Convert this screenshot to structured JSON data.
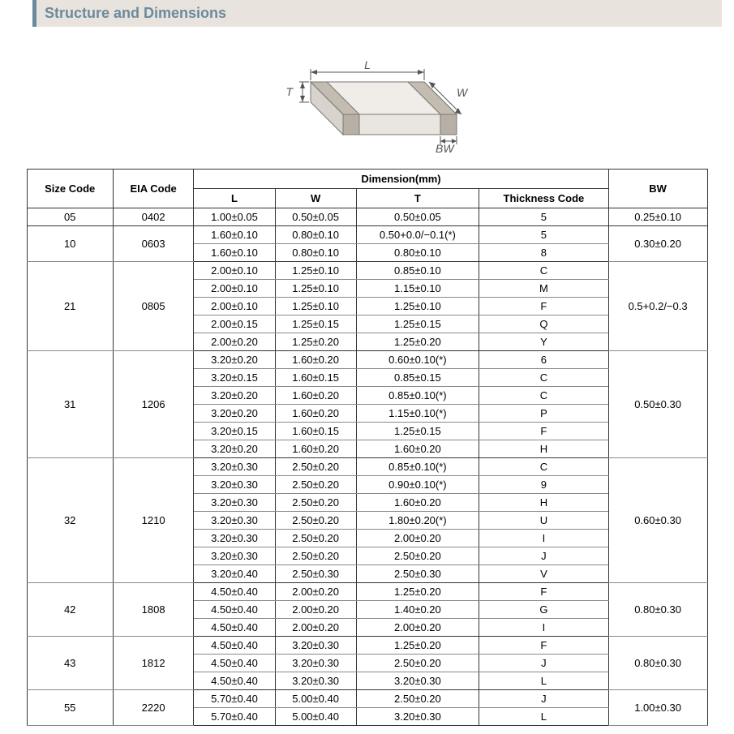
{
  "section": {
    "title": "Structure and Dimensions"
  },
  "diagram": {
    "labels": {
      "L": "L",
      "W": "W",
      "T": "T",
      "BW": "BW"
    },
    "stroke": "#777777",
    "fill_top": "#f0ede8",
    "fill_side": "#d8d3cc",
    "fill_band": "#b8b0a4"
  },
  "table": {
    "headers": {
      "size": "Size Code",
      "eia": "EIA Code",
      "dim": "Dimension(mm)",
      "L": "L",
      "W": "W",
      "T": "T",
      "thick": "Thickness  Code",
      "BW": "BW"
    },
    "groups": [
      {
        "size": "05",
        "eia": "0402",
        "bw": "0.25±0.10",
        "rows": [
          {
            "L": "1.00±0.05",
            "W": "0.50±0.05",
            "T": "0.50±0.05",
            "tc": "5"
          }
        ]
      },
      {
        "size": "10",
        "eia": "0603",
        "bw": "0.30±0.20",
        "rows": [
          {
            "L": "1.60±0.10",
            "W": "0.80±0.10",
            "T": "0.50+0.0/−0.1(*)",
            "tc": "5"
          },
          {
            "L": "1.60±0.10",
            "W": "0.80±0.10",
            "T": "0.80±0.10",
            "tc": "8"
          }
        ]
      },
      {
        "size": "21",
        "eia": "0805",
        "bw": "0.5+0.2/−0.3",
        "rows": [
          {
            "L": "2.00±0.10",
            "W": "1.25±0.10",
            "T": "0.85±0.10",
            "tc": "C"
          },
          {
            "L": "2.00±0.10",
            "W": "1.25±0.10",
            "T": "1.15±0.10",
            "tc": "M"
          },
          {
            "L": "2.00±0.10",
            "W": "1.25±0.10",
            "T": "1.25±0.10",
            "tc": "F"
          },
          {
            "L": "2.00±0.15",
            "W": "1.25±0.15",
            "T": "1.25±0.15",
            "tc": "Q"
          },
          {
            "L": "2.00±0.20",
            "W": "1.25±0.20",
            "T": "1.25±0.20",
            "tc": "Y"
          }
        ]
      },
      {
        "size": "31",
        "eia": "1206",
        "bw": "0.50±0.30",
        "rows": [
          {
            "L": "3.20±0.20",
            "W": "1.60±0.20",
            "T": "0.60±0.10(*)",
            "tc": "6"
          },
          {
            "L": "3.20±0.15",
            "W": "1.60±0.15",
            "T": "0.85±0.15",
            "tc": "C"
          },
          {
            "L": "3.20±0.20",
            "W": "1.60±0.20",
            "T": "0.85±0.10(*)",
            "tc": "C"
          },
          {
            "L": "3.20±0.20",
            "W": "1.60±0.20",
            "T": "1.15±0.10(*)",
            "tc": "P"
          },
          {
            "L": "3.20±0.15",
            "W": "1.60±0.15",
            "T": "1.25±0.15",
            "tc": "F"
          },
          {
            "L": "3.20±0.20",
            "W": "1.60±0.20",
            "T": "1.60±0.20",
            "tc": "H"
          }
        ]
      },
      {
        "size": "32",
        "eia": "1210",
        "bw": "0.60±0.30",
        "rows": [
          {
            "L": "3.20±0.30",
            "W": "2.50±0.20",
            "T": "0.85±0.10(*)",
            "tc": "C"
          },
          {
            "L": "3.20±0.30",
            "W": "2.50±0.20",
            "T": "0.90±0.10(*)",
            "tc": "9"
          },
          {
            "L": "3.20±0.30",
            "W": "2.50±0.20",
            "T": "1.60±0.20",
            "tc": "H"
          },
          {
            "L": "3.20±0.30",
            "W": "2.50±0.20",
            "T": "1.80±0.20(*)",
            "tc": "U"
          },
          {
            "L": "3.20±0.30",
            "W": "2.50±0.20",
            "T": "2.00±0.20",
            "tc": "I"
          },
          {
            "L": "3.20±0.30",
            "W": "2.50±0.20",
            "T": "2.50±0.20",
            "tc": "J"
          },
          {
            "L": "3.20±0.40",
            "W": "2.50±0.30",
            "T": "2.50±0.30",
            "tc": "V"
          }
        ]
      },
      {
        "size": "42",
        "eia": "1808",
        "bw": "0.80±0.30",
        "rows": [
          {
            "L": "4.50±0.40",
            "W": "2.00±0.20",
            "T": "1.25±0.20",
            "tc": "F"
          },
          {
            "L": "4.50±0.40",
            "W": "2.00±0.20",
            "T": "1.40±0.20",
            "tc": "G"
          },
          {
            "L": "4.50±0.40",
            "W": "2.00±0.20",
            "T": "2.00±0.20",
            "tc": "I"
          }
        ]
      },
      {
        "size": "43",
        "eia": "1812",
        "bw": "0.80±0.30",
        "rows": [
          {
            "L": "4.50±0.40",
            "W": "3.20±0.30",
            "T": "1.25±0.20",
            "tc": "F"
          },
          {
            "L": "4.50±0.40",
            "W": "3.20±0.30",
            "T": "2.50±0.20",
            "tc": "J"
          },
          {
            "L": "4.50±0.40",
            "W": "3.20±0.30",
            "T": "3.20±0.30",
            "tc": "L"
          }
        ]
      },
      {
        "size": "55",
        "eia": "2220",
        "bw": "1.00±0.30",
        "rows": [
          {
            "L": "5.70±0.40",
            "W": "5.00±0.40",
            "T": "2.50±0.20",
            "tc": "J"
          },
          {
            "L": "5.70±0.40",
            "W": "5.00±0.40",
            "T": "3.20±0.30",
            "tc": "L"
          }
        ]
      }
    ]
  }
}
